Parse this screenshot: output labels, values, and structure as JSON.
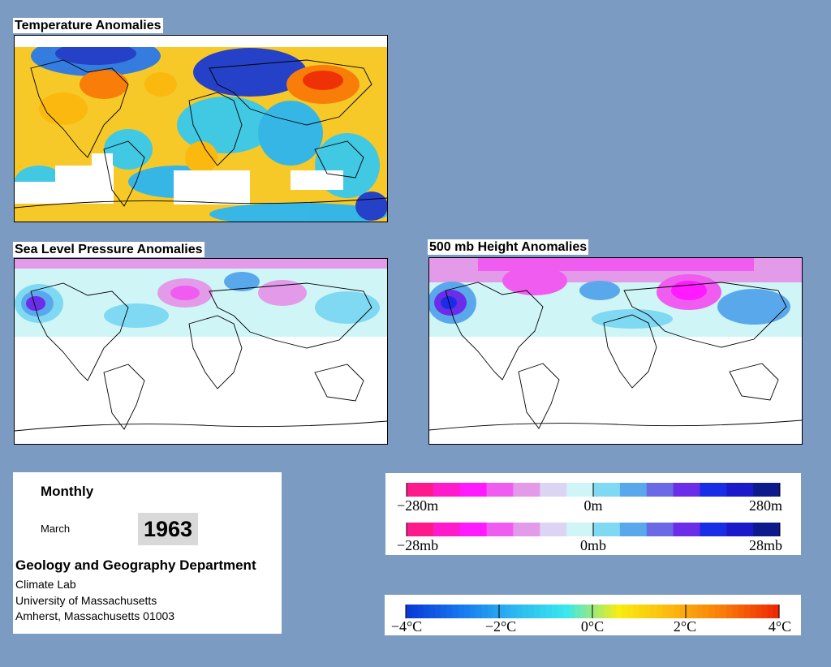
{
  "maps": {
    "temperature": {
      "title": "Temperature Anomalies"
    },
    "slp": {
      "title": "Sea Level Pressure Anomalies"
    },
    "height": {
      "title": "500 mb Height Anomalies"
    }
  },
  "info": {
    "period": "Monthly",
    "month": "March",
    "year": "1963",
    "department": "Geology and Geography Department",
    "lab": "Climate Lab",
    "university": "University of Massachusetts",
    "address": "Amherst, Massachusetts 01003"
  },
  "legends": {
    "height": {
      "labels": [
        "−280m",
        "0m",
        "280m"
      ]
    },
    "slp": {
      "labels": [
        "−28mb",
        "0mb",
        "28mb"
      ]
    },
    "temperature": {
      "labels": [
        "−4°C",
        "−2°C",
        "0°C",
        "2°C",
        "4°C"
      ]
    }
  },
  "colors": {
    "background": "#7b9bc2",
    "anomaly_scale": [
      "#ff1a8c",
      "#ff1acb",
      "#ff1aff",
      "#f05cf0",
      "#e39ae8",
      "#dcd4f3",
      "#cff5f7",
      "#7fd9f2",
      "#5aa8ec",
      "#6a6ae6",
      "#6c2de8",
      "#1a2de6",
      "#1a1acb",
      "#0d1a8c"
    ],
    "temperature_scale": [
      "#0a3ad8",
      "#1878ee",
      "#2cb6f0",
      "#38e8ee",
      "#f8ec10",
      "#fcb80e",
      "#f97a08",
      "#ee2a04"
    ]
  }
}
